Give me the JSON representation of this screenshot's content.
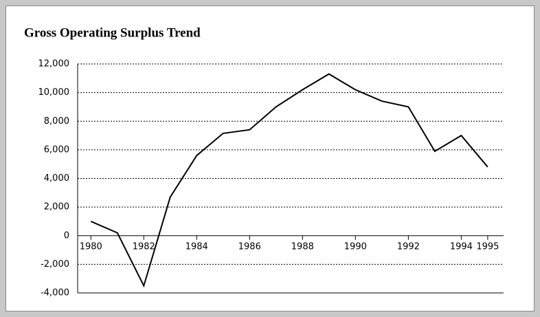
{
  "chart_data": {
    "type": "line",
    "title": "Gross Operating Surplus Trend",
    "x": [
      1980,
      1981,
      1982,
      1983,
      1984,
      1985,
      1986,
      1987,
      1988,
      1989,
      1990,
      1991,
      1992,
      1993,
      1994,
      1995
    ],
    "values": [
      1000,
      200,
      -3500,
      2700,
      5600,
      7150,
      7400,
      9000,
      10200,
      11300,
      10200,
      9400,
      9000,
      5900,
      7000,
      4800
    ],
    "color": "#000000",
    "xlim": [
      1979.5,
      1995.6
    ],
    "xticks": [
      1980,
      1982,
      1984,
      1986,
      1988,
      1990,
      1992,
      1994,
      1995
    ],
    "ylim": [
      -4000,
      12000
    ],
    "yticks": [
      {
        "value": -4000,
        "label": "-4,000"
      },
      {
        "value": -2000,
        "label": "-2,000"
      },
      0,
      {
        "value": 2000,
        "label": "2,000"
      },
      {
        "value": 4000,
        "label": "4,000"
      },
      {
        "value": 6000,
        "label": "6,000"
      },
      {
        "value": 8000,
        "label": "8,000"
      },
      {
        "value": 10000,
        "label": "10,000"
      },
      {
        "value": 12000,
        "label": "12,000"
      }
    ],
    "grid": true
  }
}
